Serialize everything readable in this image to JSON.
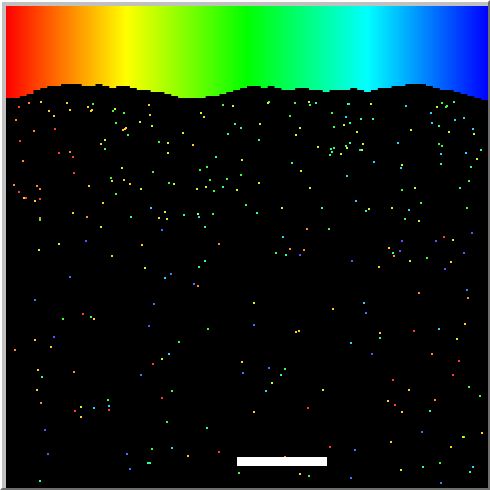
{
  "game": {
    "title": "",
    "spectrum_colors": [
      "#ff0000",
      "#ffff00",
      "#00ff00",
      "#00ffff",
      "#0000ff"
    ],
    "background_color": "#000000",
    "paddle_color": "#ffffff",
    "particle_palette": [
      "#ff3b3b",
      "#ff8a2a",
      "#ffd21f",
      "#c8ff2a",
      "#3cff3c",
      "#2aff9a",
      "#2ad5ff",
      "#3a7bff",
      "#6a4bff"
    ]
  }
}
